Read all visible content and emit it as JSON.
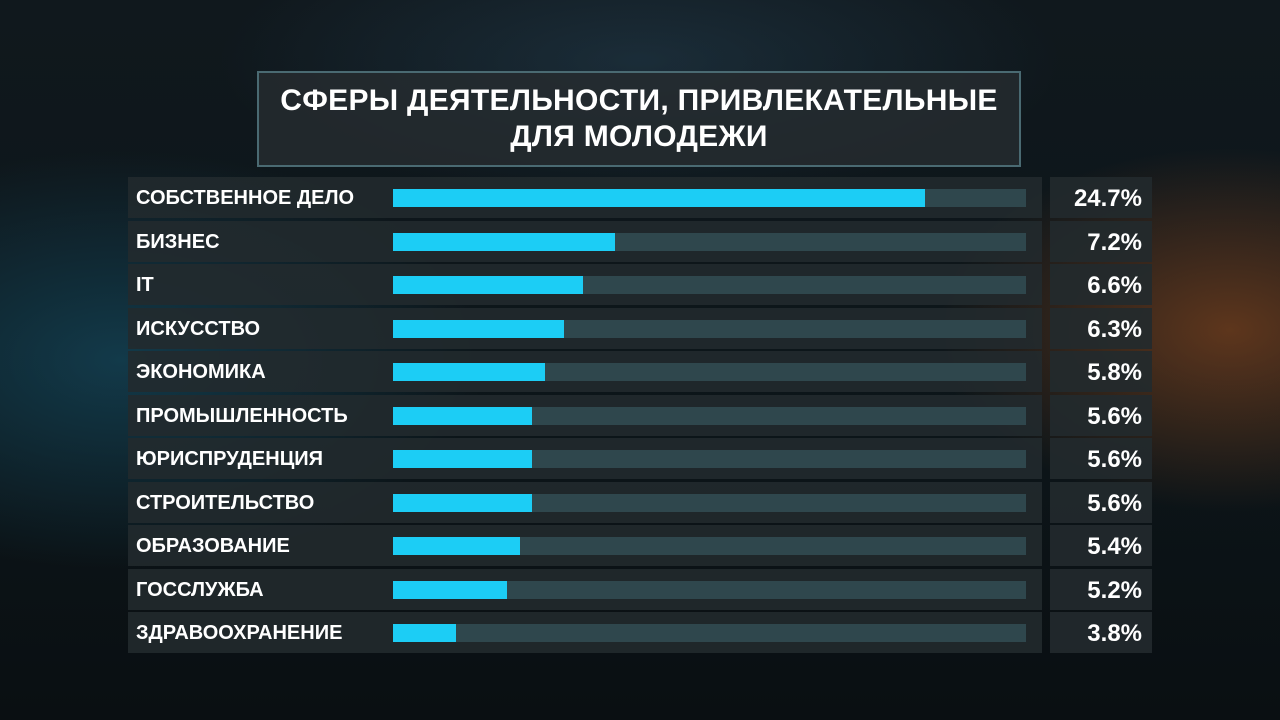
{
  "chart_data": {
    "type": "bar",
    "orientation": "horizontal",
    "title": "СФЕРЫ ДЕЯТЕЛЬНОСТИ, ПРИВЛЕКАТЕЛЬНЫЕ\nДЛЯ МОЛОДЕЖИ",
    "categories": [
      "СОБСТВЕННОЕ ДЕЛО",
      "БИЗНЕС",
      "IT",
      "ИСКУССТВО",
      "ЭКОНОМИКА",
      "ПРОМЫШЛЕННОСТЬ",
      "ЮРИСПРУДЕНЦИЯ",
      "СТРОИТЕЛЬСТВО",
      "ОБРАЗОВАНИЕ",
      "ГОССЛУЖБА",
      "ЗДРАВООХРАНЕНИЕ"
    ],
    "values": [
      24.7,
      7.2,
      6.6,
      6.3,
      5.8,
      5.6,
      5.6,
      5.6,
      5.4,
      5.2,
      3.8
    ],
    "value_labels": [
      "24.7%",
      "7.2%",
      "6.6%",
      "6.3%",
      "5.8%",
      "5.6%",
      "5.6%",
      "5.6%",
      "5.4%",
      "5.2%",
      "3.8%"
    ],
    "bar_fill_fractions": [
      0.84,
      0.35,
      0.3,
      0.27,
      0.24,
      0.22,
      0.22,
      0.22,
      0.2,
      0.18,
      0.1
    ],
    "colors": {
      "bar": "#1ccdf5",
      "track": "#2f474d"
    }
  }
}
